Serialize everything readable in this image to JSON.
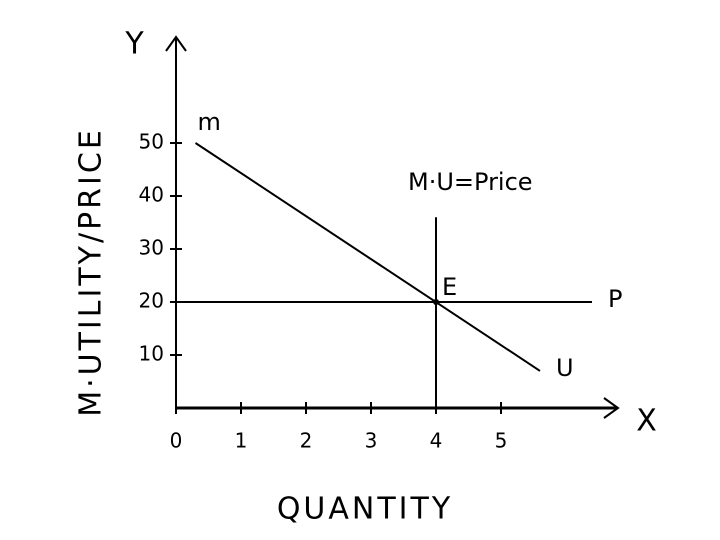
{
  "chart_data": {
    "type": "line",
    "x_label": "QUANTITY",
    "y_label": "M·UTILITY/PRICE",
    "x_axis_name": "X",
    "y_axis_name": "Y",
    "xlim": [
      0,
      6.8
    ],
    "ylim": [
      0,
      70
    ],
    "xticks": [
      0,
      1,
      2,
      3,
      4,
      5
    ],
    "yticks": [
      10,
      20,
      30,
      40,
      50
    ],
    "grid": false,
    "series": [
      {
        "color": "#000000",
        "x": [
          0.3,
          5.6
        ],
        "values": [
          50,
          7
        ],
        "start_label": "m",
        "end_label": "U"
      },
      {
        "color": "#000000",
        "x": [
          0,
          6.4
        ],
        "values": [
          20,
          20
        ],
        "end_label": "P"
      },
      {
        "color": "#000000",
        "x": [
          4,
          4
        ],
        "values": [
          0,
          36
        ],
        "end_label": "M·U=Price"
      }
    ],
    "equilibrium": {
      "label": "E",
      "x": 4,
      "y": 20
    }
  }
}
